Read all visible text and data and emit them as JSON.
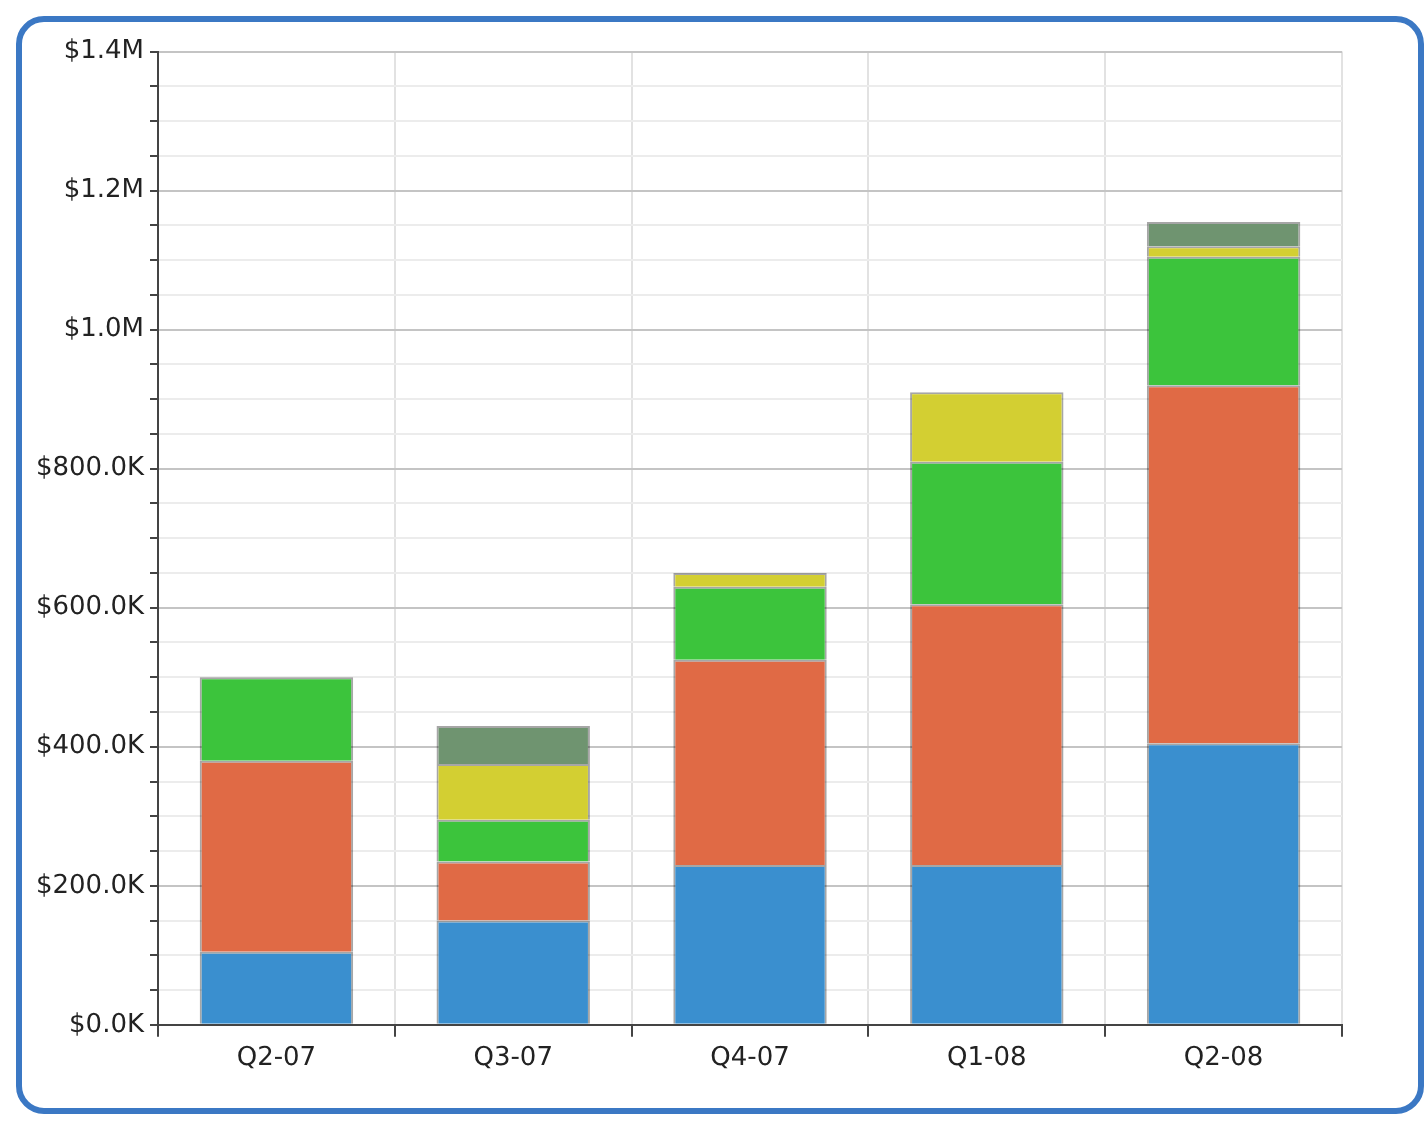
{
  "chart_data": {
    "type": "bar",
    "stacked": true,
    "categories": [
      "Q2-07",
      "Q3-07",
      "Q4-07",
      "Q1-08",
      "Q2-08"
    ],
    "series": [
      {
        "color": "#3a8fcf",
        "values": [
          105000,
          150000,
          230000,
          230000,
          405000
        ]
      },
      {
        "color": "#e06a45",
        "values": [
          275000,
          85000,
          295000,
          375000,
          515000
        ]
      },
      {
        "color": "#3cc43c",
        "values": [
          120000,
          60000,
          105000,
          205000,
          185000
        ]
      },
      {
        "color": "#d3cf32",
        "values": [
          null,
          80000,
          20000,
          100000,
          15000
        ]
      },
      {
        "color": "#6f9470",
        "values": [
          null,
          55000,
          null,
          null,
          35000
        ]
      }
    ],
    "ylim": [
      0,
      1400000
    ],
    "yticks": [
      {
        "value": 0,
        "label": "$0.0K"
      },
      {
        "value": 50000,
        "label": null
      },
      {
        "value": 100000,
        "label": null
      },
      {
        "value": 150000,
        "label": null
      },
      {
        "value": 200000,
        "label": "$200.0K"
      },
      {
        "value": 250000,
        "label": null
      },
      {
        "value": 300000,
        "label": null
      },
      {
        "value": 350000,
        "label": null
      },
      {
        "value": 400000,
        "label": "$400.0K"
      },
      {
        "value": 450000,
        "label": null
      },
      {
        "value": 500000,
        "label": null
      },
      {
        "value": 550000,
        "label": null
      },
      {
        "value": 600000,
        "label": "$600.0K"
      },
      {
        "value": 650000,
        "label": null
      },
      {
        "value": 700000,
        "label": null
      },
      {
        "value": 750000,
        "label": null
      },
      {
        "value": 800000,
        "label": "$800.0K"
      },
      {
        "value": 850000,
        "label": null
      },
      {
        "value": 900000,
        "label": null
      },
      {
        "value": 950000,
        "label": null
      },
      {
        "value": 1000000,
        "label": "$1.0M"
      },
      {
        "value": 1050000,
        "label": null
      },
      {
        "value": 1100000,
        "label": null
      },
      {
        "value": 1150000,
        "label": null
      },
      {
        "value": 1200000,
        "label": "$1.2M"
      },
      {
        "value": 1250000,
        "label": null
      },
      {
        "value": 1300000,
        "label": null
      },
      {
        "value": 1350000,
        "label": null
      },
      {
        "value": 1400000,
        "label": "$1.4M"
      }
    ],
    "grid": true,
    "legend": false
  }
}
